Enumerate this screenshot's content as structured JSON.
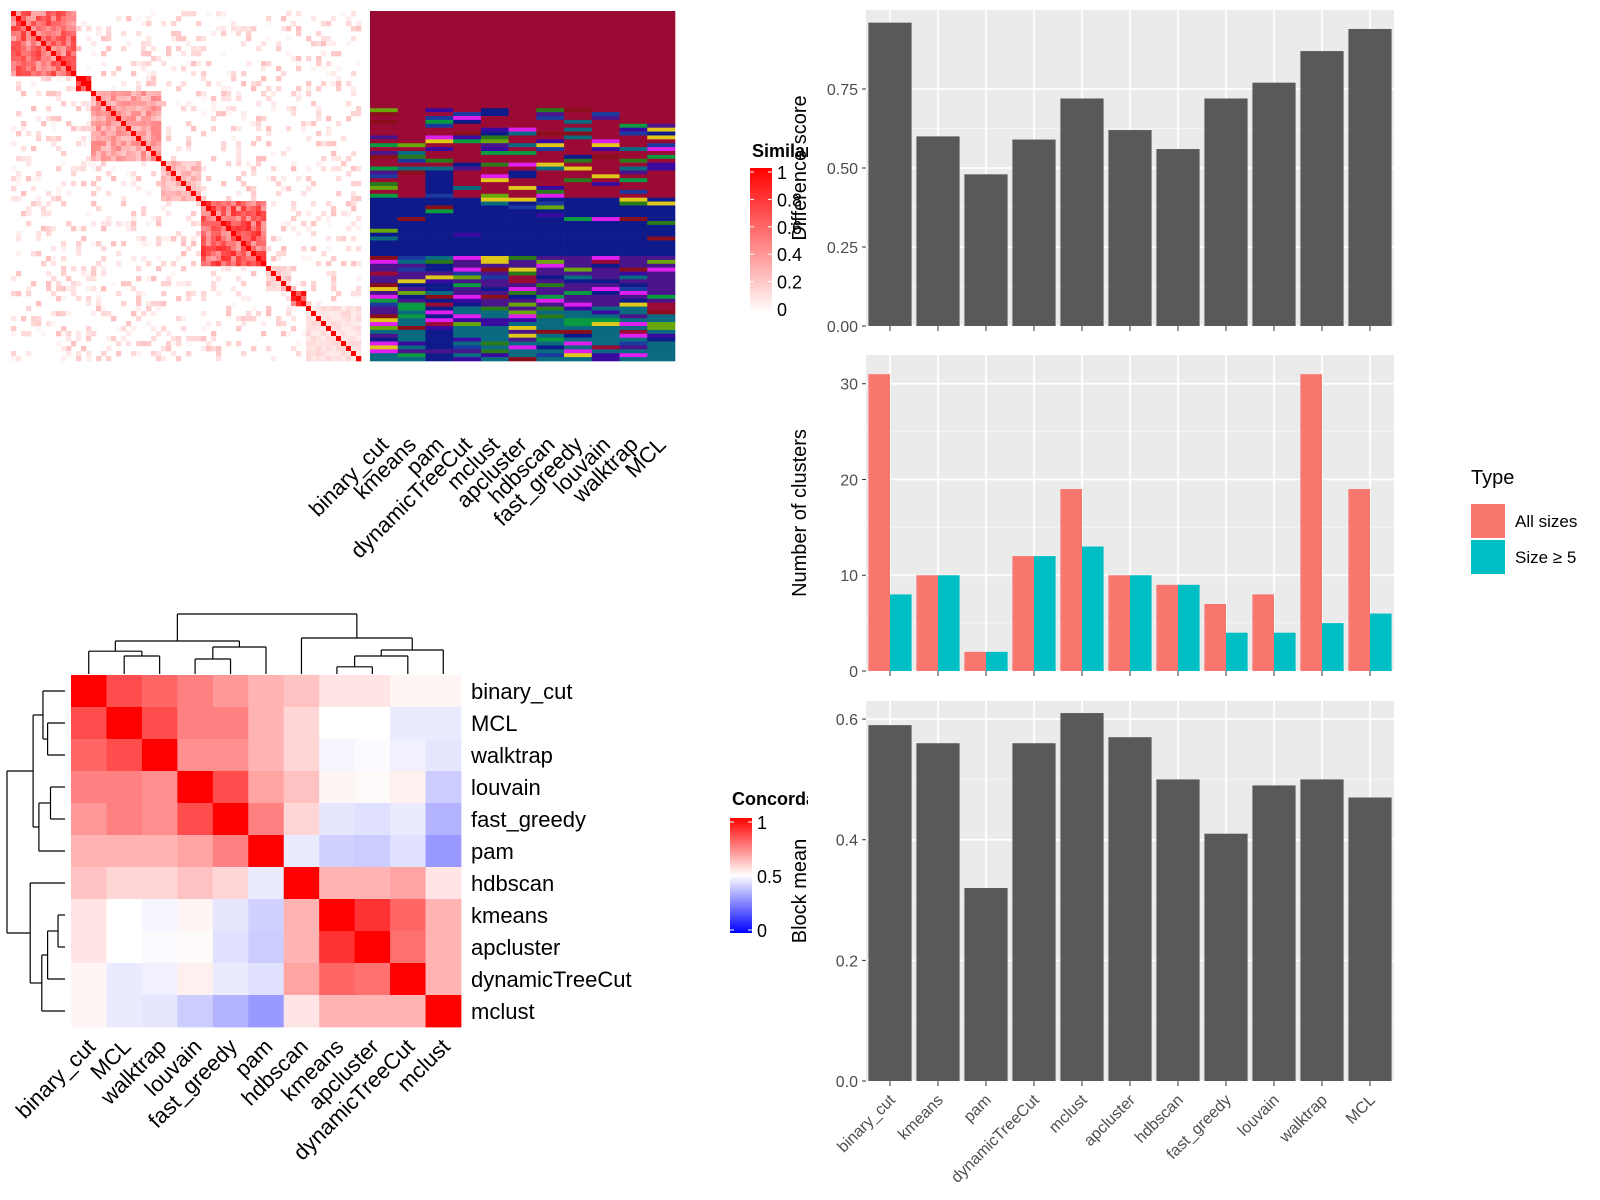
{
  "chart_data": [
    {
      "id": "similarity_heatmap",
      "type": "heatmap",
      "legend": {
        "title": "Similarity",
        "ticks": [
          "1",
          "0.8",
          "0.6",
          "0.4",
          "0.2",
          "0"
        ],
        "low_color": "#ffffff",
        "high_color": "#ff0000"
      },
      "blocks": [
        {
          "start": 0.0,
          "end": 0.19,
          "mean": 0.55
        },
        {
          "start": 0.19,
          "end": 0.23,
          "mean": 0.85
        },
        {
          "start": 0.23,
          "end": 0.43,
          "mean": 0.35
        },
        {
          "start": 0.43,
          "end": 0.55,
          "mean": 0.25
        },
        {
          "start": 0.55,
          "end": 0.73,
          "mean": 0.6
        },
        {
          "start": 0.73,
          "end": 0.8,
          "mean": 0.2
        },
        {
          "start": 0.8,
          "end": 0.84,
          "mean": 0.7
        },
        {
          "start": 0.84,
          "end": 1.0,
          "mean": 0.12
        }
      ],
      "columns": [
        "binary_cut",
        "kmeans",
        "pam",
        "dynamicTreeCut",
        "mclust",
        "apcluster",
        "hdbscan",
        "fast_greedy",
        "louvain",
        "walktrap",
        "MCL"
      ],
      "cluster_palette": [
        "#9a0a35",
        "#0f1a8a",
        "#8a0f1a",
        "#e01ef0",
        "#2a7a1a",
        "#6aa80a",
        "#4a148a",
        "#0a6a80",
        "#e0c81a",
        "#1a3aa0",
        "#0a9a40",
        "#3a0aa0"
      ]
    },
    {
      "id": "concordance_heatmap",
      "type": "heatmap",
      "legend": {
        "title": "Concordance",
        "ticks": [
          "1",
          "0.5",
          "0"
        ],
        "low_color": "#0000ff",
        "mid_color": "#ffffff",
        "high_color": "#ff0000"
      },
      "rows": [
        "binary_cut",
        "MCL",
        "walktrap",
        "louvain",
        "fast_greedy",
        "pam",
        "hdbscan",
        "kmeans",
        "apcluster",
        "dynamicTreeCut",
        "mclust"
      ],
      "columns": [
        "binary_cut",
        "MCL",
        "walktrap",
        "louvain",
        "fast_greedy",
        "pam",
        "hdbscan",
        "kmeans",
        "apcluster",
        "dynamicTreeCut",
        "mclust"
      ],
      "values": [
        [
          1.0,
          0.85,
          0.8,
          0.75,
          0.7,
          0.65,
          0.62,
          0.55,
          0.55,
          0.52,
          0.52
        ],
        [
          0.85,
          1.0,
          0.85,
          0.75,
          0.75,
          0.65,
          0.58,
          0.5,
          0.5,
          0.46,
          0.46
        ],
        [
          0.8,
          0.85,
          1.0,
          0.72,
          0.72,
          0.65,
          0.58,
          0.48,
          0.49,
          0.47,
          0.45
        ],
        [
          0.75,
          0.75,
          0.72,
          1.0,
          0.85,
          0.68,
          0.62,
          0.52,
          0.51,
          0.53,
          0.4
        ],
        [
          0.7,
          0.75,
          0.72,
          0.85,
          1.0,
          0.75,
          0.58,
          0.45,
          0.44,
          0.46,
          0.35
        ],
        [
          0.65,
          0.65,
          0.65,
          0.68,
          0.75,
          1.0,
          0.46,
          0.41,
          0.4,
          0.44,
          0.3
        ],
        [
          0.62,
          0.58,
          0.58,
          0.62,
          0.58,
          0.46,
          1.0,
          0.65,
          0.65,
          0.68,
          0.55
        ],
        [
          0.55,
          0.5,
          0.48,
          0.52,
          0.45,
          0.41,
          0.65,
          1.0,
          0.9,
          0.8,
          0.65
        ],
        [
          0.55,
          0.5,
          0.49,
          0.51,
          0.44,
          0.4,
          0.65,
          0.9,
          1.0,
          0.78,
          0.65
        ],
        [
          0.52,
          0.46,
          0.47,
          0.53,
          0.46,
          0.44,
          0.68,
          0.8,
          0.78,
          1.0,
          0.65
        ],
        [
          0.52,
          0.46,
          0.45,
          0.4,
          0.35,
          0.3,
          0.55,
          0.65,
          0.65,
          0.65,
          1.0
        ]
      ]
    },
    {
      "id": "difference_score",
      "type": "bar",
      "categories": [
        "binary_cut",
        "kmeans",
        "pam",
        "dynamicTreeCut",
        "mclust",
        "apcluster",
        "hdbscan",
        "fast_greedy",
        "louvain",
        "walktrap",
        "MCL"
      ],
      "values": [
        0.96,
        0.6,
        0.48,
        0.59,
        0.72,
        0.62,
        0.56,
        0.72,
        0.77,
        0.87,
        0.94
      ],
      "xlabel": "",
      "ylabel": "Difference score",
      "ylim": [
        0,
        1.0
      ],
      "yticks": [
        0.0,
        0.25,
        0.5,
        0.75
      ],
      "ytick_labels": [
        "0.00",
        "0.25",
        "0.50",
        "0.75"
      ],
      "grid": true
    },
    {
      "id": "number_of_clusters",
      "type": "bar",
      "categories": [
        "binary_cut",
        "kmeans",
        "pam",
        "dynamicTreeCut",
        "mclust",
        "apcluster",
        "hdbscan",
        "fast_greedy",
        "louvain",
        "walktrap",
        "MCL"
      ],
      "series": [
        {
          "name": "All sizes",
          "color": "#F8766D",
          "values": [
            31,
            10,
            2,
            12,
            19,
            10,
            9,
            7,
            8,
            31,
            19
          ]
        },
        {
          "name": "Size ≥ 5",
          "color": "#00BFC4",
          "values": [
            8,
            10,
            2,
            12,
            13,
            10,
            9,
            4,
            4,
            5,
            6
          ]
        }
      ],
      "xlabel": "",
      "ylabel": "Number of clusters",
      "ylim": [
        0,
        33
      ],
      "yticks": [
        0,
        10,
        20,
        30
      ],
      "ytick_labels": [
        "0",
        "10",
        "20",
        "30"
      ],
      "legend_title": "Type",
      "legend_position": "right",
      "grid": true
    },
    {
      "id": "block_mean",
      "type": "bar",
      "categories": [
        "binary_cut",
        "kmeans",
        "pam",
        "dynamicTreeCut",
        "mclust",
        "apcluster",
        "hdbscan",
        "fast_greedy",
        "louvain",
        "walktrap",
        "MCL"
      ],
      "values": [
        0.59,
        0.56,
        0.32,
        0.56,
        0.61,
        0.57,
        0.5,
        0.41,
        0.49,
        0.5,
        0.47
      ],
      "xlabel": "",
      "ylabel": "Block mean",
      "ylim": [
        0,
        0.63
      ],
      "yticks": [
        0.0,
        0.2,
        0.4,
        0.6
      ],
      "ytick_labels": [
        "0.0",
        "0.2",
        "0.4",
        "0.6"
      ],
      "grid": true
    }
  ]
}
